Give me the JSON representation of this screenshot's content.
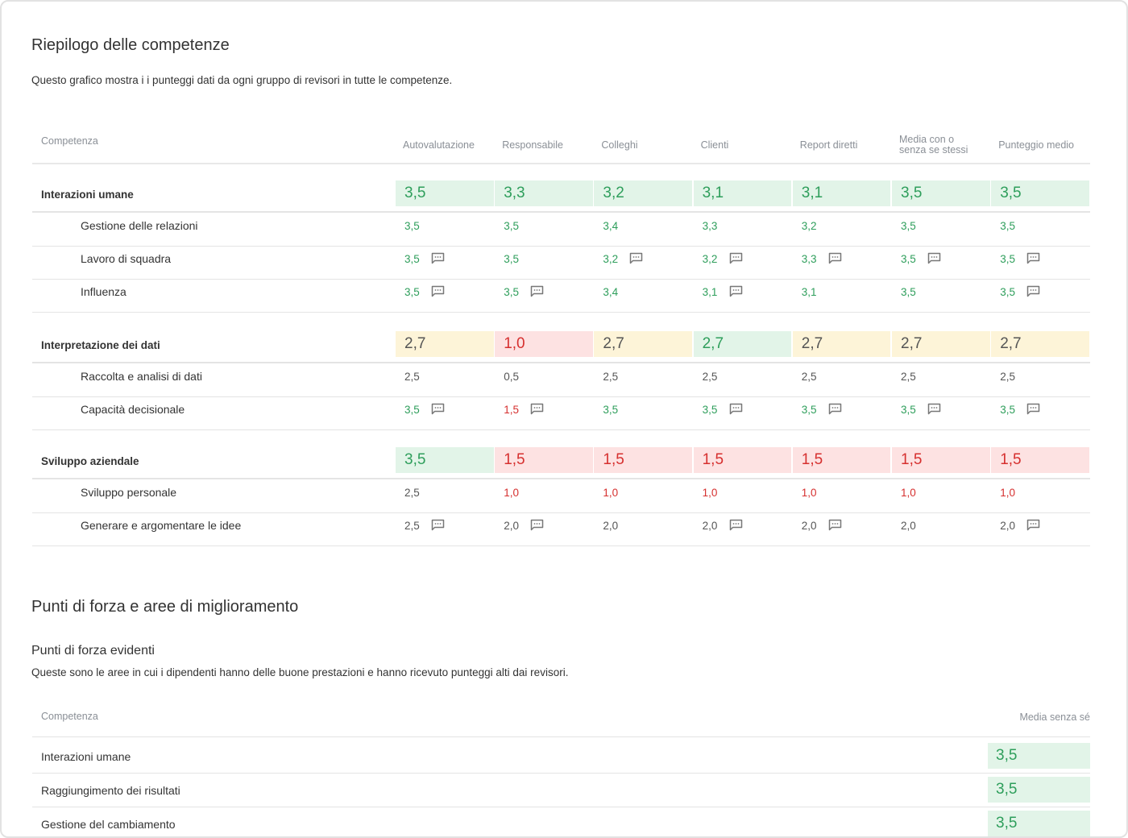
{
  "summary": {
    "title": "Riepilogo delle competenze",
    "description": "Questo grafico mostra i i punteggi dati da ogni gruppo di revisori in tutte le competenze.",
    "table": {
      "header": "Competenza",
      "columns": [
        "Autovalutazione",
        "Responsabile",
        "Colleghi",
        "Clienti",
        "Report diretti",
        "Media con o senza se stessi",
        "Punteggio medio"
      ],
      "groups": [
        {
          "label": "Interazioni umane",
          "values": [
            "3,5",
            "3,3",
            "3,2",
            "3,1",
            "3,1",
            "3,5",
            "3,5"
          ],
          "tones": [
            "green",
            "green",
            "green",
            "green",
            "green",
            "green",
            "green"
          ],
          "rows": [
            {
              "label": "Gestione delle relazioni",
              "values": [
                "3,5",
                "3,5",
                "3,4",
                "3,3",
                "3,2",
                "3,5",
                "3,5"
              ],
              "tones": [
                "green",
                "green",
                "green",
                "green",
                "green",
                "green",
                "green"
              ],
              "comments": [
                false,
                false,
                false,
                false,
                false,
                false,
                false
              ]
            },
            {
              "label": "Lavoro di squadra",
              "values": [
                "3,5",
                "3,5",
                "3,2",
                "3,2",
                "3,3",
                "3,5",
                "3,5"
              ],
              "tones": [
                "green",
                "green",
                "green",
                "green",
                "green",
                "green",
                "green"
              ],
              "comments": [
                true,
                false,
                true,
                true,
                true,
                true,
                true
              ]
            },
            {
              "label": "Influenza",
              "values": [
                "3,5",
                "3,5",
                "3,4",
                "3,1",
                "3,1",
                "3,5",
                "3,5"
              ],
              "tones": [
                "green",
                "green",
                "green",
                "green",
                "green",
                "green",
                "green"
              ],
              "comments": [
                true,
                true,
                false,
                true,
                false,
                false,
                true
              ]
            }
          ]
        },
        {
          "label": "Interpretazione dei dati",
          "values": [
            "2,7",
            "1,0",
            "2,7",
            "2,7",
            "2,7",
            "2,7",
            "2,7"
          ],
          "tones": [
            "yellow",
            "red",
            "yellow",
            "green",
            "yellow",
            "yellow",
            "yellow"
          ],
          "rows": [
            {
              "label": "Raccolta e analisi di dati",
              "values": [
                "2,5",
                "0,5",
                "2,5",
                "2,5",
                "2,5",
                "2,5",
                "2,5"
              ],
              "tones": [
                "gray",
                "gray",
                "gray",
                "gray",
                "gray",
                "gray",
                "gray"
              ],
              "comments": [
                false,
                false,
                false,
                false,
                false,
                false,
                false
              ]
            },
            {
              "label": "Capacità decisionale",
              "values": [
                "3,5",
                "1,5",
                "3,5",
                "3,5",
                "3,5",
                "3,5",
                "3,5"
              ],
              "tones": [
                "green",
                "red",
                "green",
                "green",
                "green",
                "green",
                "green"
              ],
              "comments": [
                true,
                true,
                false,
                true,
                true,
                true,
                true
              ]
            }
          ]
        },
        {
          "label": "Sviluppo aziendale",
          "values": [
            "3,5",
            "1,5",
            "1,5",
            "1,5",
            "1,5",
            "1,5",
            "1,5"
          ],
          "tones": [
            "green",
            "red",
            "red",
            "red",
            "red",
            "red",
            "red"
          ],
          "rows": [
            {
              "label": "Sviluppo personale",
              "values": [
                "2,5",
                "1,0",
                "1,0",
                "1,0",
                "1,0",
                "1,0",
                "1,0"
              ],
              "tones": [
                "gray",
                "red",
                "red",
                "red",
                "red",
                "red",
                "red"
              ],
              "comments": [
                false,
                false,
                false,
                false,
                false,
                false,
                false
              ]
            },
            {
              "label": "Generare e argomentare le idee",
              "values": [
                "2,5",
                "2,0",
                "2,0",
                "2,0",
                "2,0",
                "2,0",
                "2,0"
              ],
              "tones": [
                "gray",
                "gray",
                "gray",
                "gray",
                "gray",
                "gray",
                "gray"
              ],
              "comments": [
                true,
                true,
                false,
                true,
                true,
                false,
                true
              ]
            }
          ]
        }
      ]
    }
  },
  "strengths": {
    "title": "Punti di forza e aree di miglioramento",
    "subtitle": "Punti di forza evidenti",
    "description": "Queste sono le aree in cui i dipendenti hanno delle buone prestazioni e hanno ricevuto punteggi alti dai revisori.",
    "table": {
      "header": "Competenza",
      "column": "Media senza sé",
      "rows": [
        {
          "label": "Interazioni umane",
          "value": "3,5",
          "tone": "green"
        },
        {
          "label": "Raggiungimento dei risultati",
          "value": "3,5",
          "tone": "green"
        },
        {
          "label": "Gestione del cambiamento",
          "value": "3,5",
          "tone": "green"
        }
      ]
    }
  }
}
